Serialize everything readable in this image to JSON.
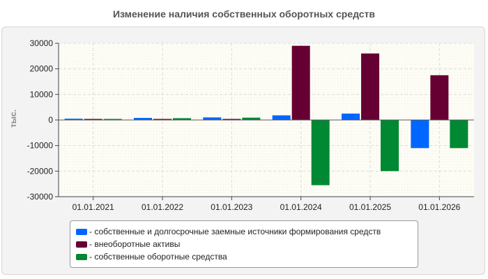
{
  "chart_data": {
    "type": "bar",
    "title": "Изменение наличия собственных оборотных средств",
    "ylabel": "тыс.",
    "xlabel": "",
    "ylim": [
      -30000,
      30000
    ],
    "yticks": [
      30000,
      20000,
      10000,
      0,
      -10000,
      -20000,
      -30000
    ],
    "grid": true,
    "legend_position": "bottom",
    "categories": [
      "01.01.2021",
      "01.01.2022",
      "01.01.2023",
      "01.01.2024",
      "01.01.2025",
      "01.01.2026"
    ],
    "series": [
      {
        "name": "- собственные и долгосрочные заемные источники формирования средств",
        "color": "#0066ff",
        "values": [
          500,
          800,
          1000,
          1800,
          2500,
          -11000
        ]
      },
      {
        "name": "- внеоборотные активы",
        "color": "#660033",
        "values": [
          300,
          400,
          400,
          29000,
          26000,
          17500
        ]
      },
      {
        "name": "- собственные оборотные средства",
        "color": "#008833",
        "values": [
          400,
          700,
          900,
          -25500,
          -20000,
          -11000
        ]
      }
    ]
  }
}
